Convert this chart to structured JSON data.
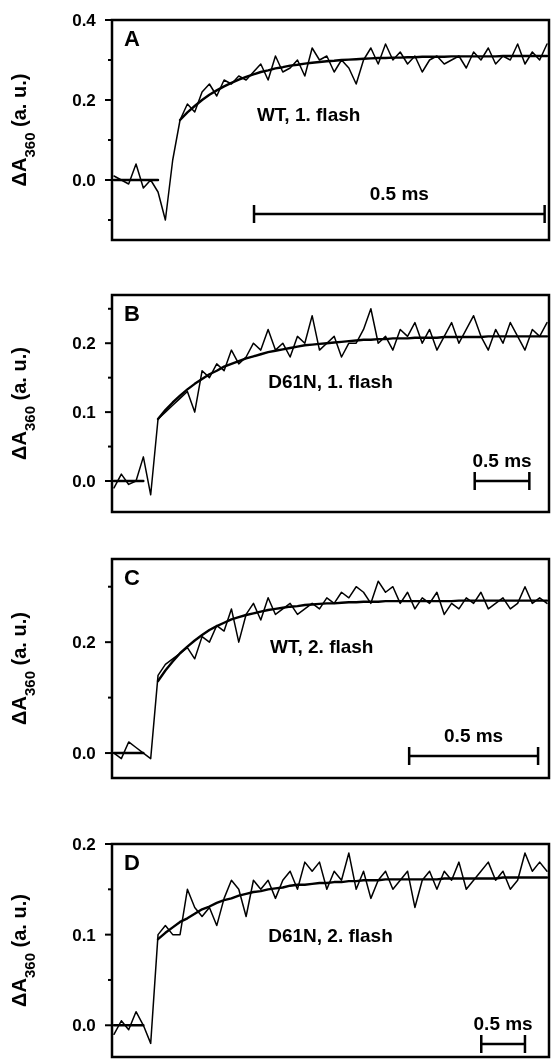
{
  "chart_data": [
    {
      "type": "line",
      "title": "A",
      "ylabel": "ΔA$_{360}$ (a. u.)",
      "annotations": [
        "WT, 1. flash",
        "0.5 ms"
      ],
      "ylim": [
        -0.15,
        0.4
      ],
      "yticks": [
        {
          "value": -0.1,
          "label": null
        },
        {
          "value": 0,
          "label": "0.0"
        },
        {
          "value": 0.1,
          "label": null
        },
        0.2,
        {
          "value": 0.3,
          "label": null
        },
        0.4
      ],
      "categories": [
        null,
        null,
        null,
        null,
        null,
        null,
        null,
        null,
        null,
        null,
        null,
        null,
        null,
        null,
        null,
        null,
        null,
        null,
        null,
        null,
        null,
        null,
        null,
        null,
        null,
        null,
        null,
        null,
        null,
        null,
        null,
        null,
        null,
        null,
        null,
        null,
        null,
        null,
        null,
        null,
        null,
        null,
        null,
        null,
        null,
        null,
        null,
        null,
        null,
        null,
        null,
        null,
        null,
        null,
        null,
        null,
        null,
        null,
        null,
        null
      ],
      "series": [
        {
          "color": "#000000",
          "values": [
            0.01,
            0.0,
            -0.01,
            0.04,
            -0.02,
            0.0,
            -0.03,
            -0.1,
            0.05,
            0.15,
            0.19,
            0.17,
            0.22,
            0.24,
            0.21,
            0.25,
            0.24,
            0.26,
            0.25,
            0.27,
            0.29,
            0.25,
            0.31,
            0.27,
            0.28,
            0.3,
            0.26,
            0.33,
            0.3,
            0.31,
            0.27,
            0.3,
            0.28,
            0.24,
            0.3,
            0.33,
            0.29,
            0.34,
            0.3,
            0.32,
            0.29,
            0.31,
            0.27,
            0.3,
            0.31,
            0.29,
            0.3,
            0.31,
            0.28,
            0.32,
            0.3,
            0.33,
            0.29,
            0.31,
            0.3,
            0.34,
            0.29,
            0.32,
            0.3,
            0.34
          ]
        },
        {
          "color": "#000000",
          "values": [
            0,
            0,
            0,
            0,
            0,
            0,
            0,
            null,
            null,
            0.15,
            0.169,
            0.185,
            0.2,
            0.213,
            0.224,
            0.234,
            0.243,
            0.251,
            0.258,
            0.264,
            0.27,
            0.274,
            0.279,
            0.282,
            0.286,
            0.288,
            0.291,
            0.293,
            0.295,
            0.297,
            0.298,
            0.3,
            0.301,
            0.302,
            0.303,
            0.304,
            0.305,
            0.305,
            0.306,
            0.306,
            0.307,
            0.307,
            0.308,
            0.308,
            0.308,
            0.308,
            0.309,
            0.309,
            0.309,
            0.309,
            0.309,
            0.309,
            0.309,
            0.31,
            0.31,
            0.31,
            0.31,
            0.31,
            0.31,
            0.31
          ]
        }
      ]
    },
    {
      "type": "line",
      "title": "B",
      "ylabel": "ΔA$_{360}$ (a. u.)",
      "annotations": [
        "D61N, 1. flash",
        "0.5 ms"
      ],
      "ylim": [
        -0.045,
        0.27
      ],
      "yticks": [
        {
          "value": 0,
          "label": "0.0"
        },
        {
          "value": 0.05,
          "label": null
        },
        0.1,
        {
          "value": 0.15,
          "label": null
        },
        0.2,
        {
          "value": 0.25,
          "label": null
        }
      ],
      "categories": [
        null,
        null,
        null,
        null,
        null,
        null,
        null,
        null,
        null,
        null,
        null,
        null,
        null,
        null,
        null,
        null,
        null,
        null,
        null,
        null,
        null,
        null,
        null,
        null,
        null,
        null,
        null,
        null,
        null,
        null,
        null,
        null,
        null,
        null,
        null,
        null,
        null,
        null,
        null,
        null,
        null,
        null,
        null,
        null,
        null,
        null,
        null,
        null,
        null,
        null,
        null,
        null,
        null,
        null,
        null,
        null,
        null,
        null,
        null,
        null
      ],
      "series": [
        {
          "color": "#000000",
          "values": [
            -0.01,
            0.01,
            -0.005,
            0.0,
            0.035,
            -0.02,
            0.09,
            0.1,
            0.11,
            0.12,
            0.13,
            0.1,
            0.16,
            0.15,
            0.17,
            0.16,
            0.19,
            0.17,
            0.18,
            0.2,
            0.19,
            0.22,
            0.19,
            0.2,
            0.18,
            0.21,
            0.2,
            0.24,
            0.19,
            0.2,
            0.21,
            0.18,
            0.2,
            0.2,
            0.22,
            0.25,
            0.2,
            0.21,
            0.19,
            0.22,
            0.21,
            0.23,
            0.2,
            0.22,
            0.19,
            0.21,
            0.23,
            0.2,
            0.22,
            0.24,
            0.21,
            0.19,
            0.22,
            0.2,
            0.23,
            0.21,
            0.19,
            0.22,
            0.21,
            0.23
          ]
        },
        {
          "color": "#000000",
          "values": [
            0,
            0,
            0,
            0,
            0,
            null,
            0.09,
            0.103,
            0.114,
            0.124,
            0.133,
            0.141,
            0.148,
            0.155,
            0.16,
            0.166,
            0.17,
            0.174,
            0.178,
            0.181,
            0.184,
            0.187,
            0.189,
            0.191,
            0.193,
            0.195,
            0.197,
            0.198,
            0.199,
            0.2,
            0.201,
            0.202,
            0.203,
            0.204,
            0.205,
            0.205,
            0.206,
            0.206,
            0.207,
            0.207,
            0.207,
            0.208,
            0.208,
            0.208,
            0.208,
            0.209,
            0.209,
            0.209,
            0.209,
            0.209,
            0.209,
            0.21,
            0.21,
            0.21,
            0.21,
            0.21,
            0.21,
            0.21,
            0.21,
            0.21
          ]
        }
      ]
    },
    {
      "type": "line",
      "title": "C",
      "ylabel": "ΔA$_{360}$ (a. u.)",
      "annotations": [
        "WT, 2. flash",
        "0.5 ms"
      ],
      "ylim": [
        -0.045,
        0.35
      ],
      "yticks": [
        {
          "value": 0,
          "label": "0.0"
        },
        {
          "value": 0.1,
          "label": null
        },
        0.2,
        {
          "value": 0.3,
          "label": null
        }
      ],
      "categories": [
        null,
        null,
        null,
        null,
        null,
        null,
        null,
        null,
        null,
        null,
        null,
        null,
        null,
        null,
        null,
        null,
        null,
        null,
        null,
        null,
        null,
        null,
        null,
        null,
        null,
        null,
        null,
        null,
        null,
        null,
        null,
        null,
        null,
        null,
        null,
        null,
        null,
        null,
        null,
        null,
        null,
        null,
        null,
        null,
        null,
        null,
        null,
        null,
        null,
        null,
        null,
        null,
        null,
        null,
        null,
        null,
        null,
        null,
        null,
        null
      ],
      "series": [
        {
          "color": "#000000",
          "values": [
            0.0,
            -0.01,
            0.02,
            0.01,
            0.0,
            -0.01,
            0.14,
            0.16,
            0.17,
            0.18,
            0.19,
            0.17,
            0.21,
            0.2,
            0.23,
            0.22,
            0.26,
            0.2,
            0.25,
            0.27,
            0.24,
            0.28,
            0.25,
            0.26,
            0.27,
            0.25,
            0.26,
            0.27,
            0.26,
            0.28,
            0.27,
            0.29,
            0.28,
            0.3,
            0.29,
            0.27,
            0.31,
            0.29,
            0.3,
            0.27,
            0.29,
            0.26,
            0.28,
            0.27,
            0.29,
            0.25,
            0.27,
            0.26,
            0.28,
            0.27,
            0.29,
            0.26,
            0.27,
            0.28,
            0.26,
            0.27,
            0.3,
            0.27,
            0.28,
            0.27
          ]
        },
        {
          "color": "#000000",
          "values": [
            0,
            0,
            0,
            0,
            0,
            null,
            0.13,
            0.149,
            0.165,
            0.18,
            0.192,
            0.203,
            0.213,
            0.222,
            0.229,
            0.235,
            0.241,
            0.245,
            0.249,
            0.252,
            0.255,
            0.258,
            0.26,
            0.262,
            0.264,
            0.265,
            0.267,
            0.268,
            0.269,
            0.27,
            0.27,
            0.271,
            0.272,
            0.272,
            0.273,
            0.273,
            0.273,
            0.274,
            0.274,
            0.274,
            0.274,
            0.274,
            0.274,
            0.274,
            0.274,
            0.274,
            0.274,
            0.275,
            0.275,
            0.275,
            0.275,
            0.275,
            0.275,
            0.275,
            0.275,
            0.275,
            0.275,
            0.275,
            0.275,
            0.275
          ]
        }
      ]
    },
    {
      "type": "line",
      "title": "D",
      "ylabel": "ΔA$_{360}$ (a. u.)",
      "annotations": [
        "D61N, 2. flash",
        "0.5 ms"
      ],
      "ylim": [
        -0.035,
        0.2
      ],
      "yticks": [
        {
          "value": 0,
          "label": "0.0"
        },
        {
          "value": 0.05,
          "label": null
        },
        0.1,
        {
          "value": 0.15,
          "label": null
        },
        0.2
      ],
      "categories": [
        null,
        null,
        null,
        null,
        null,
        null,
        null,
        null,
        null,
        null,
        null,
        null,
        null,
        null,
        null,
        null,
        null,
        null,
        null,
        null,
        null,
        null,
        null,
        null,
        null,
        null,
        null,
        null,
        null,
        null,
        null,
        null,
        null,
        null,
        null,
        null,
        null,
        null,
        null,
        null,
        null,
        null,
        null,
        null,
        null,
        null,
        null,
        null,
        null,
        null,
        null,
        null,
        null,
        null,
        null,
        null,
        null,
        null,
        null,
        null
      ],
      "series": [
        {
          "color": "#000000",
          "values": [
            -0.01,
            0.005,
            -0.005,
            0.015,
            0.0,
            -0.02,
            0.1,
            0.11,
            0.1,
            0.1,
            0.15,
            0.13,
            0.12,
            0.13,
            0.11,
            0.14,
            0.16,
            0.15,
            0.12,
            0.16,
            0.15,
            0.16,
            0.14,
            0.16,
            0.17,
            0.15,
            0.18,
            0.17,
            0.18,
            0.15,
            0.17,
            0.16,
            0.19,
            0.15,
            0.17,
            0.14,
            0.16,
            0.17,
            0.15,
            0.16,
            0.17,
            0.13,
            0.16,
            0.17,
            0.15,
            0.17,
            0.16,
            0.18,
            0.15,
            0.16,
            0.17,
            0.18,
            0.16,
            0.17,
            0.15,
            0.16,
            0.19,
            0.17,
            0.18,
            0.17
          ]
        },
        {
          "color": "#000000",
          "values": [
            0,
            0,
            0,
            0,
            0,
            null,
            0.095,
            0.102,
            0.108,
            0.114,
            0.118,
            0.123,
            0.128,
            0.131,
            0.135,
            0.138,
            0.14,
            0.143,
            0.145,
            0.147,
            0.148,
            0.15,
            0.151,
            0.152,
            0.154,
            0.155,
            0.155,
            0.156,
            0.157,
            0.157,
            0.158,
            0.158,
            0.159,
            0.159,
            0.16,
            0.16,
            0.16,
            0.161,
            0.161,
            0.161,
            0.161,
            0.161,
            0.161,
            0.161,
            0.161,
            0.162,
            0.162,
            0.162,
            0.162,
            0.162,
            0.162,
            0.162,
            0.162,
            0.163,
            0.163,
            0.163,
            0.163,
            0.163,
            0.163,
            0.163
          ]
        }
      ]
    }
  ]
}
